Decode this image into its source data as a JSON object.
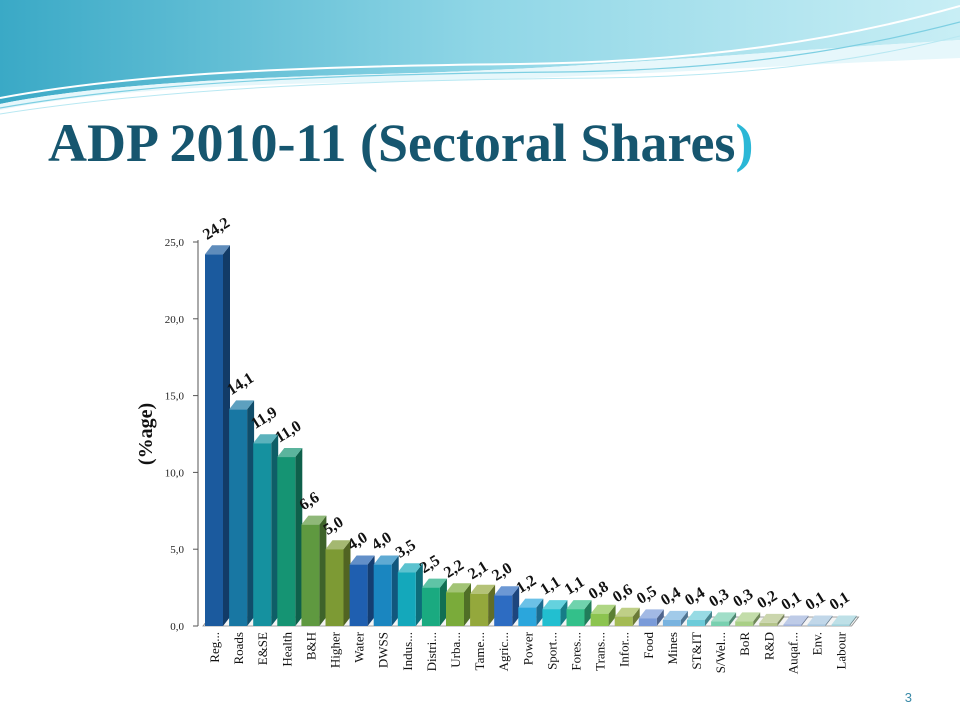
{
  "slide": {
    "title_main": "ADP 2010-11 (Sectoral Shares",
    "title_close": ")",
    "page_number": "3"
  },
  "chart_data": {
    "type": "bar",
    "title": "",
    "xlabel": "",
    "ylabel": "(%age)",
    "ylim": [
      0,
      25
    ],
    "yticks": [
      "0,0",
      "5,0",
      "10,0",
      "15,0",
      "20,0",
      "25,0"
    ],
    "grid": false,
    "legend": "none",
    "categories": [
      "Reg...",
      "Roads",
      "E&SE",
      "Health",
      "B&H",
      "Higher",
      "Water",
      "DWSS",
      "Indus...",
      "Distri...",
      "Urba...",
      "Tame...",
      "Agric...",
      "Power",
      "Sport...",
      "Fores...",
      "Trans...",
      "Infor...",
      "Food",
      "Mines",
      "ST&IT",
      "S/Wel...",
      "BoR",
      "R&D",
      "Auqaf...",
      "Env.",
      "Labour"
    ],
    "values": [
      24.2,
      14.1,
      11.9,
      11.0,
      6.6,
      5.0,
      4.0,
      4.0,
      3.5,
      2.5,
      2.2,
      2.1,
      2.0,
      1.2,
      1.1,
      1.1,
      0.8,
      0.6,
      0.5,
      0.4,
      0.4,
      0.3,
      0.3,
      0.2,
      0.1,
      0.1,
      0.1
    ],
    "value_labels": [
      "24,2",
      "14,1",
      "11,9",
      "11,0",
      "6,6",
      "5,0",
      "4,0",
      "4,0",
      "3,5",
      "2,5",
      "2,2",
      "2,1",
      "2,0",
      "1,2",
      "1,1",
      "1,1",
      "0,8",
      "0,6",
      "0,5",
      "0,4",
      "0,4",
      "0,3",
      "0,3",
      "0,2",
      "0,1",
      "0,1",
      "0,1"
    ],
    "colors": [
      "#1b5a9e",
      "#1877a3",
      "#15919f",
      "#159473",
      "#5f9940",
      "#7d9a34",
      "#1f5fb0",
      "#1a86c0",
      "#14a8bb",
      "#1aaa80",
      "#7aab3a",
      "#94a83c",
      "#2d6cc2",
      "#2ba6dc",
      "#22bfd0",
      "#33c08a",
      "#8cc44f",
      "#a4bb54",
      "#7a9bd9",
      "#79b3df",
      "#6ccbd9",
      "#79d0b0",
      "#a9cf86",
      "#b4c48a",
      "#a2b4dc",
      "#a6c6df",
      "#a2d2dc"
    ]
  }
}
